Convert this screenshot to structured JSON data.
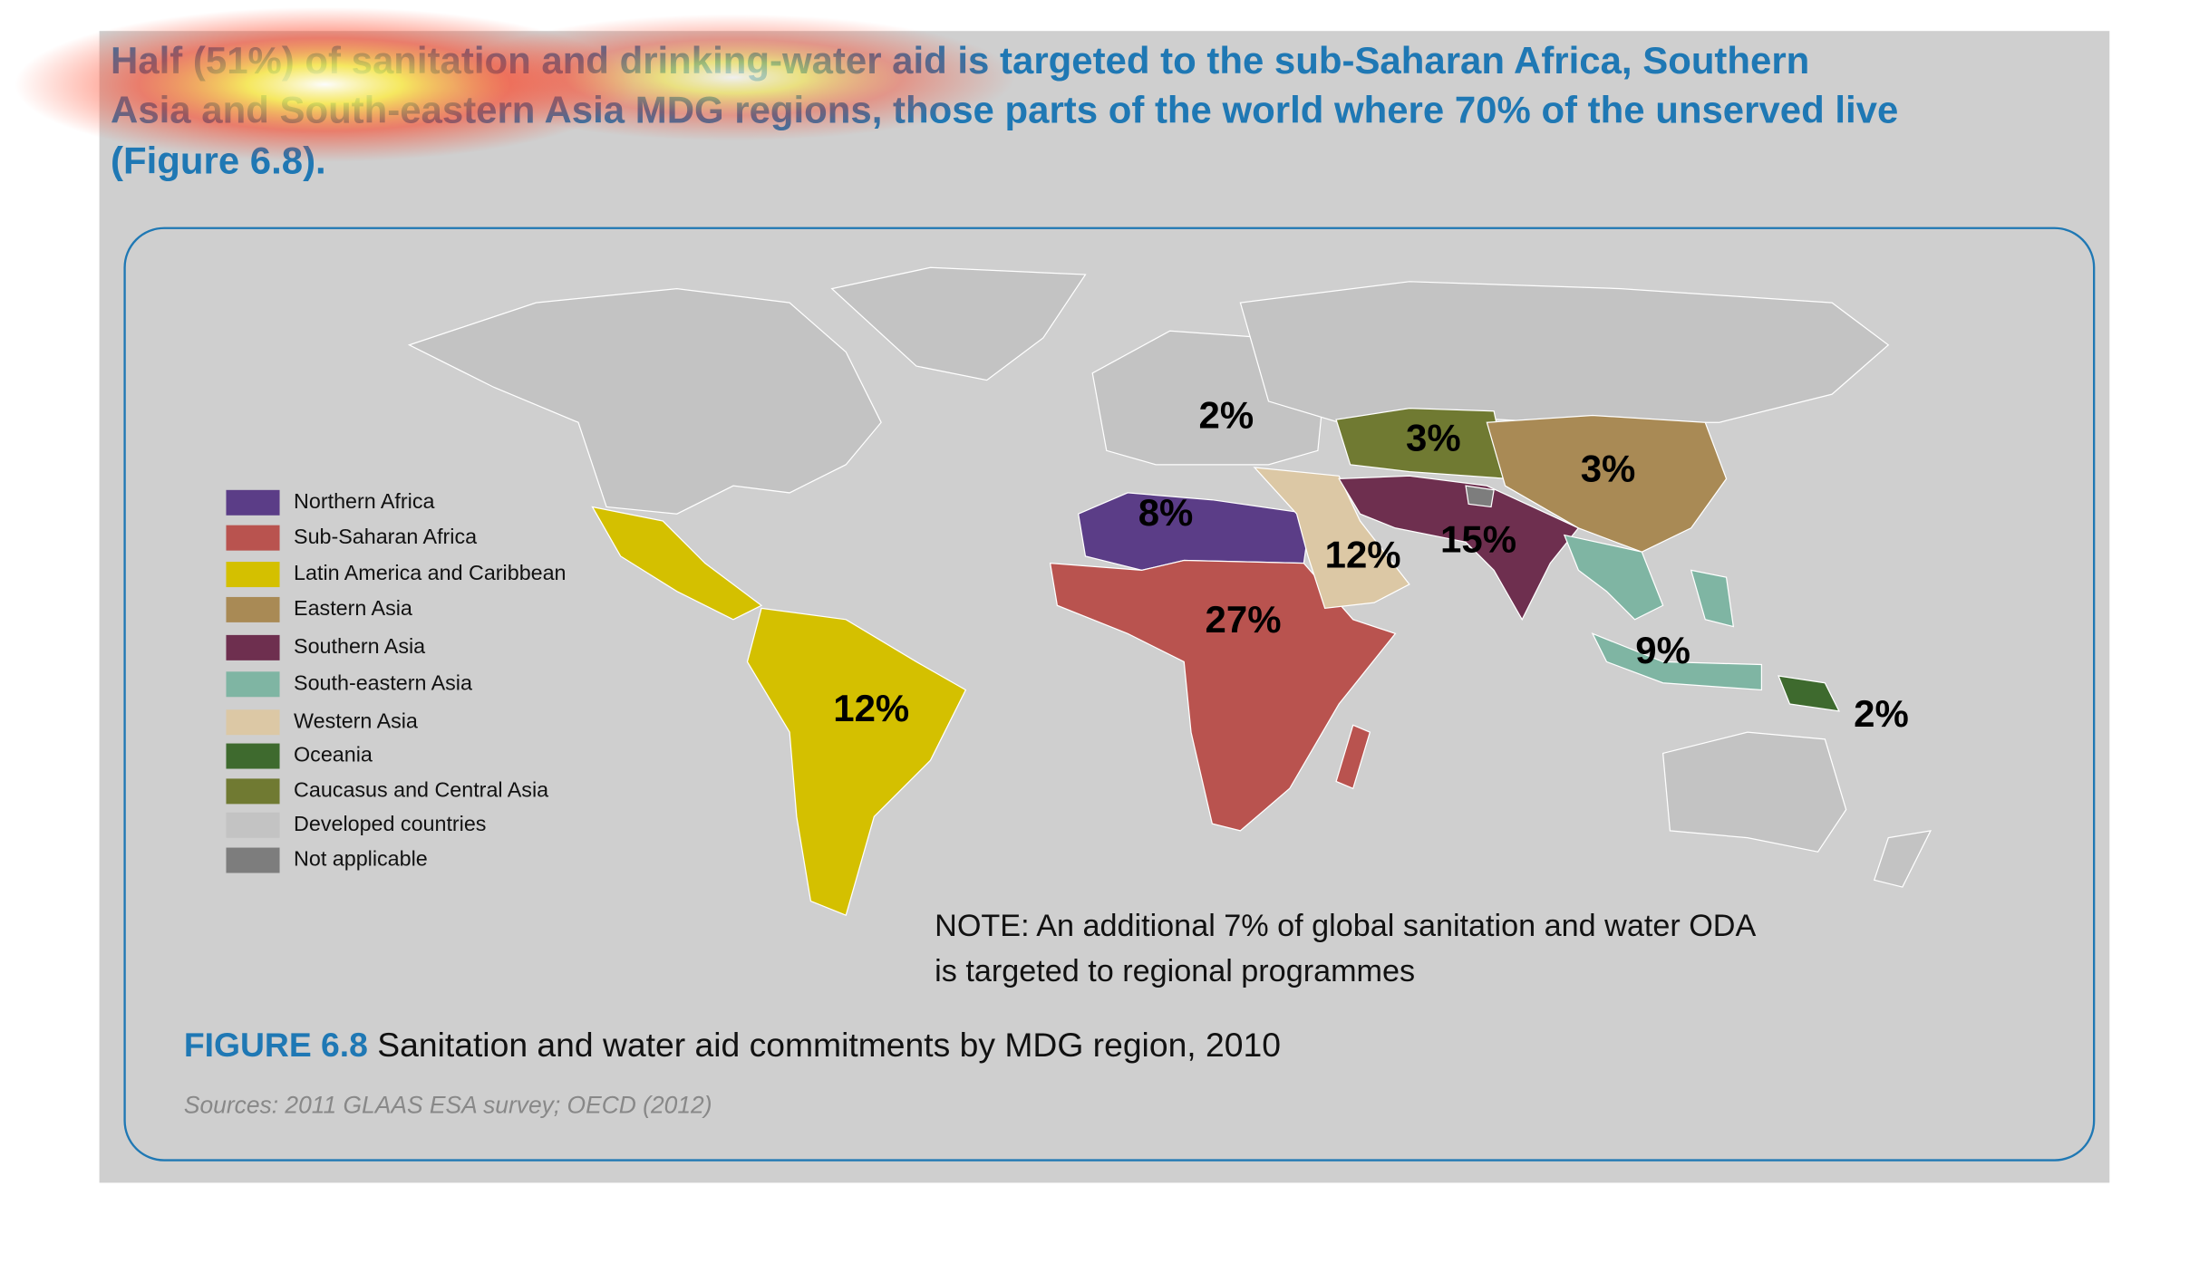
{
  "heading": [
    "Half (51%) of sanitation and drinking-water aid is targeted to the sub-Saharan Africa, Southern",
    "Asia and South-eastern Asia MDG regions, those parts of the world where 70% of the unserved live",
    "(Figure 6.8)."
  ],
  "legend": [
    {
      "label": "Northern Africa",
      "color": "#5b3d87"
    },
    {
      "label": "Sub-Saharan Africa",
      "color": "#b9534f"
    },
    {
      "label": "Latin America and Caribbean",
      "color": "#d4c000"
    },
    {
      "label": "Eastern Asia",
      "color": "#a98a55"
    },
    {
      "label": "Southern Asia",
      "color": "#6e2f4f"
    },
    {
      "label": "South-eastern Asia",
      "color": "#7fb5a3"
    },
    {
      "label": "Western Asia",
      "color": "#dcc8a5"
    },
    {
      "label": "Oceania",
      "color": "#3e6a2e"
    },
    {
      "label": "Caucasus and Central Asia",
      "color": "#707a32"
    },
    {
      "label": "Developed countries",
      "color": "#c3c3c3"
    },
    {
      "label": "Not applicable",
      "color": "#7d7d7d"
    }
  ],
  "map_labels": [
    "2%",
    "3%",
    "3%",
    "8%",
    "12%",
    "15%",
    "27%",
    "9%",
    "2%",
    "12%"
  ],
  "note": [
    "NOTE: An additional 7% of global sanitation and water ODA",
    "is targeted to regional programmes"
  ],
  "caption": {
    "label": "FIGURE 6.8",
    "text": "Sanitation and water aid commitments by MDG region, 2010"
  },
  "sources": "Sources: 2011 GLAAS ESA survey; OECD (2012)"
}
